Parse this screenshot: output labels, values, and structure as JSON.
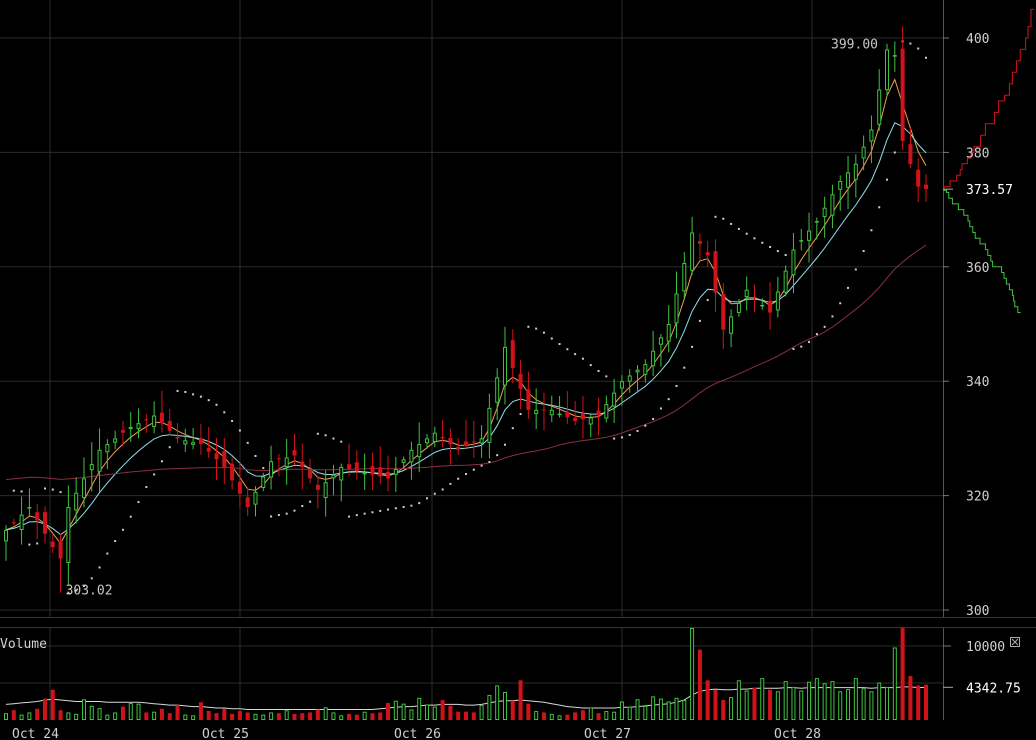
{
  "chart_data": {
    "type": "candlestick",
    "x_labels": [
      "Oct 24",
      "Oct 25",
      "Oct 26",
      "Oct 27",
      "Oct 28"
    ],
    "price_axis": {
      "ticks": [
        300,
        320,
        340,
        360,
        380,
        400
      ],
      "ylim": [
        298,
        405
      ]
    },
    "volume_axis": {
      "label": "Volume",
      "ticks": [
        10000
      ],
      "ylim": [
        0,
        13000
      ]
    },
    "annotations": {
      "high_label": "399.00",
      "high_value": 399.0,
      "low_label": "303.02",
      "low_value": 303.02,
      "last_price_label": "373.57",
      "last_price_value": 373.57,
      "volume_avg_label": "4342.75",
      "volume_avg_value": 4342.75,
      "volume_tick_label": "10000"
    },
    "anchors": [
      {
        "i": 0,
        "c": 314
      },
      {
        "i": 3,
        "c": 318
      },
      {
        "i": 6,
        "c": 311
      },
      {
        "i": 7,
        "c": 309
      },
      {
        "i": 8,
        "c": 318
      },
      {
        "i": 12,
        "c": 328
      },
      {
        "i": 16,
        "c": 332
      },
      {
        "i": 19,
        "c": 334
      },
      {
        "i": 22,
        "c": 330
      },
      {
        "i": 25,
        "c": 329
      },
      {
        "i": 28,
        "c": 325
      },
      {
        "i": 31,
        "c": 318
      },
      {
        "i": 34,
        "c": 326
      },
      {
        "i": 37,
        "c": 327
      },
      {
        "i": 40,
        "c": 321
      },
      {
        "i": 43,
        "c": 325
      },
      {
        "i": 46,
        "c": 324
      },
      {
        "i": 49,
        "c": 323
      },
      {
        "i": 52,
        "c": 328
      },
      {
        "i": 55,
        "c": 331
      },
      {
        "i": 58,
        "c": 328
      },
      {
        "i": 61,
        "c": 330
      },
      {
        "i": 64,
        "c": 346
      },
      {
        "i": 67,
        "c": 335
      },
      {
        "i": 70,
        "c": 335
      },
      {
        "i": 73,
        "c": 333
      },
      {
        "i": 76,
        "c": 334
      },
      {
        "i": 79,
        "c": 340
      },
      {
        "i": 82,
        "c": 343
      },
      {
        "i": 85,
        "c": 350
      },
      {
        "i": 88,
        "c": 366
      },
      {
        "i": 90,
        "c": 362
      },
      {
        "i": 92,
        "c": 349
      },
      {
        "i": 95,
        "c": 356
      },
      {
        "i": 98,
        "c": 352
      },
      {
        "i": 101,
        "c": 363
      },
      {
        "i": 104,
        "c": 368
      },
      {
        "i": 107,
        "c": 375
      },
      {
        "i": 109,
        "c": 378
      },
      {
        "i": 111,
        "c": 384
      },
      {
        "i": 113,
        "c": 398
      },
      {
        "i": 114,
        "c": 397
      },
      {
        "i": 115,
        "c": 382
      },
      {
        "i": 117,
        "c": 374
      }
    ],
    "volume_bars": [
      800,
      1200,
      600,
      900,
      1400,
      2800,
      4000,
      1200,
      900,
      700,
      2700,
      1800,
      1500,
      600,
      900,
      1700,
      2200,
      2100,
      900,
      1000,
      1400,
      800,
      1900,
      600,
      500,
      2300,
      1100,
      800,
      1400,
      700,
      1100,
      900,
      700,
      600,
      900,
      800,
      1200,
      700,
      800,
      900,
      1300,
      1600,
      900,
      500,
      700,
      600,
      1000,
      800,
      900,
      2200,
      2500,
      2100,
      1300,
      2900,
      2000,
      1700,
      2600,
      1800,
      1000,
      1000,
      900,
      1900,
      3300,
      4600,
      3700,
      2500,
      5300,
      2100,
      1100,
      900,
      700,
      500,
      600,
      900,
      1200,
      1600,
      800,
      1100,
      1000,
      2400,
      1700,
      2700,
      1800,
      3100,
      2800,
      2400,
      2900,
      2600,
      13000,
      9500,
      5300,
      4000,
      2600,
      3000,
      5300,
      3900,
      4300,
      5600,
      4000,
      3800,
      5200,
      4400,
      3900,
      5100,
      5600,
      4900,
      5200,
      3800,
      4100,
      5600,
      4200,
      3800,
      5000,
      4400,
      9800,
      12900,
      5900,
      4600,
      4700
    ],
    "volume_avg": [
      2000,
      2100,
      2200,
      2300,
      2400,
      2600,
      2700,
      2600,
      2500,
      2400,
      2400,
      2400,
      2400,
      2300,
      2300,
      2300,
      2300,
      2300,
      2200,
      2100,
      2000,
      1900,
      1900,
      1800,
      1700,
      1700,
      1600,
      1500,
      1500,
      1400,
      1400,
      1300,
      1300,
      1300,
      1300,
      1300,
      1300,
      1300,
      1300,
      1300,
      1300,
      1300,
      1300,
      1300,
      1300,
      1300,
      1300,
      1300,
      1400,
      1500,
      1600,
      1700,
      1700,
      1800,
      1900,
      1900,
      2000,
      2000,
      2000,
      1900,
      1900,
      2000,
      2200,
      2400,
      2500,
      2500,
      2600,
      2500,
      2400,
      2300,
      2100,
      1900,
      1700,
      1600,
      1500,
      1500,
      1500,
      1500,
      1500,
      1600,
      1600,
      1700,
      1800,
      1900,
      2000,
      2100,
      2300,
      2600,
      3300,
      3800,
      4000,
      4100,
      4000,
      4000,
      4100,
      4100,
      4200,
      4200,
      4200,
      4200,
      4300,
      4300,
      4200,
      4300,
      4300,
      4300,
      4300,
      4300,
      4300,
      4300,
      4300,
      4200,
      4300,
      4300,
      4300,
      4400,
      4400,
      4300,
      4342.75
    ],
    "depth_bids": [
      [
        373.57,
        0
      ],
      [
        373.4,
        0.4
      ],
      [
        373,
        0.8
      ],
      [
        372,
        1.4
      ],
      [
        371,
        2.4
      ],
      [
        370,
        3.3
      ],
      [
        369,
        4.0
      ],
      [
        368,
        4.3
      ],
      [
        367,
        4.8
      ],
      [
        366,
        5.2
      ],
      [
        365,
        6.0
      ],
      [
        364,
        6.9
      ],
      [
        363,
        7.3
      ],
      [
        362,
        7.8
      ],
      [
        361,
        8.1
      ],
      [
        360,
        9.6
      ],
      [
        359,
        10.0
      ],
      [
        358,
        10.4
      ],
      [
        357,
        10.9
      ],
      [
        356,
        11.4
      ],
      [
        355,
        11.6
      ],
      [
        354,
        11.8
      ],
      [
        353,
        12.3
      ],
      [
        352,
        12.8
      ]
    ],
    "depth_asks": [
      [
        373.57,
        0
      ],
      [
        374,
        1.0
      ],
      [
        375,
        2.1
      ],
      [
        376,
        2.7
      ],
      [
        377,
        3.0
      ],
      [
        378,
        3.9
      ],
      [
        379,
        4.5
      ],
      [
        380,
        5.0
      ],
      [
        381,
        6.1
      ],
      [
        383,
        6.9
      ],
      [
        385,
        8.4
      ],
      [
        387,
        9.1
      ],
      [
        389,
        10.1
      ],
      [
        390,
        10.9
      ],
      [
        392,
        11.4
      ],
      [
        394,
        12.1
      ],
      [
        396,
        12.7
      ],
      [
        398,
        13.6
      ],
      [
        400,
        14.0
      ],
      [
        402,
        14.5
      ],
      [
        405,
        15.0
      ]
    ]
  }
}
